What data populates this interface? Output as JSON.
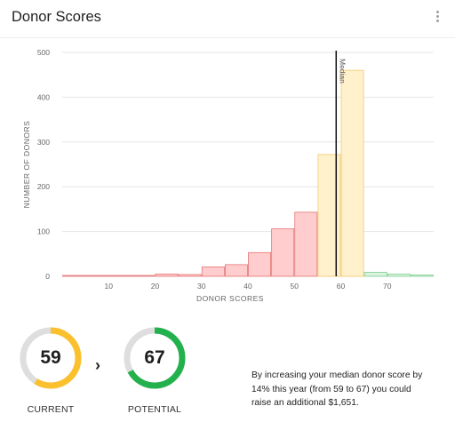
{
  "header": {
    "title": "Donor Scores",
    "menu_icon": "more-vert-icon"
  },
  "chart_data": {
    "type": "bar",
    "xlabel": "DONOR SCORES",
    "ylabel": "NUMBER OF DONORS",
    "xlim": [
      0,
      80
    ],
    "ylim": [
      0,
      500
    ],
    "x_ticks": [
      10,
      20,
      30,
      40,
      50,
      60,
      70
    ],
    "y_ticks": [
      0,
      100,
      200,
      300,
      400,
      500
    ],
    "bins": [
      {
        "start": 0,
        "end": 5,
        "value": 2,
        "band": "low"
      },
      {
        "start": 5,
        "end": 10,
        "value": 0,
        "band": "low"
      },
      {
        "start": 10,
        "end": 15,
        "value": 0,
        "band": "low"
      },
      {
        "start": 15,
        "end": 20,
        "value": 1,
        "band": "low"
      },
      {
        "start": 20,
        "end": 25,
        "value": 5,
        "band": "low"
      },
      {
        "start": 25,
        "end": 30,
        "value": 4,
        "band": "low"
      },
      {
        "start": 30,
        "end": 35,
        "value": 21,
        "band": "low"
      },
      {
        "start": 35,
        "end": 40,
        "value": 26,
        "band": "low"
      },
      {
        "start": 40,
        "end": 45,
        "value": 53,
        "band": "low"
      },
      {
        "start": 45,
        "end": 50,
        "value": 106,
        "band": "low"
      },
      {
        "start": 50,
        "end": 55,
        "value": 143,
        "band": "low"
      },
      {
        "start": 55,
        "end": 60,
        "value": 272,
        "band": "mid"
      },
      {
        "start": 60,
        "end": 65,
        "value": 460,
        "band": "mid"
      },
      {
        "start": 65,
        "end": 70,
        "value": 9,
        "band": "high"
      },
      {
        "start": 70,
        "end": 75,
        "value": 5,
        "band": "high"
      },
      {
        "start": 75,
        "end": 80,
        "value": 3,
        "band": "high"
      }
    ],
    "median": {
      "value": 59,
      "label": "Median"
    },
    "grid": true,
    "colors": {
      "low_fill": "#ffcdcd",
      "low_stroke": "#e57373",
      "mid_fill": "#fff1cc",
      "mid_stroke": "#f3c86b",
      "high_fill": "#d8f3de",
      "high_stroke": "#7fcf92",
      "grid": "#e6e6e6",
      "axis_text": "#666666",
      "median_line": "#111111"
    }
  },
  "current": {
    "value": "59",
    "label": "CURRENT",
    "fraction": 0.59,
    "color": "#fbc02d"
  },
  "potential": {
    "value": "67",
    "label": "POTENTIAL",
    "fraction": 0.67,
    "color": "#22b14c"
  },
  "gauge_track_color": "#dedede",
  "arrow": "›",
  "message": "By increasing your median donor score by 14% this year (from 59 to 67) you could raise an additional $1,651."
}
